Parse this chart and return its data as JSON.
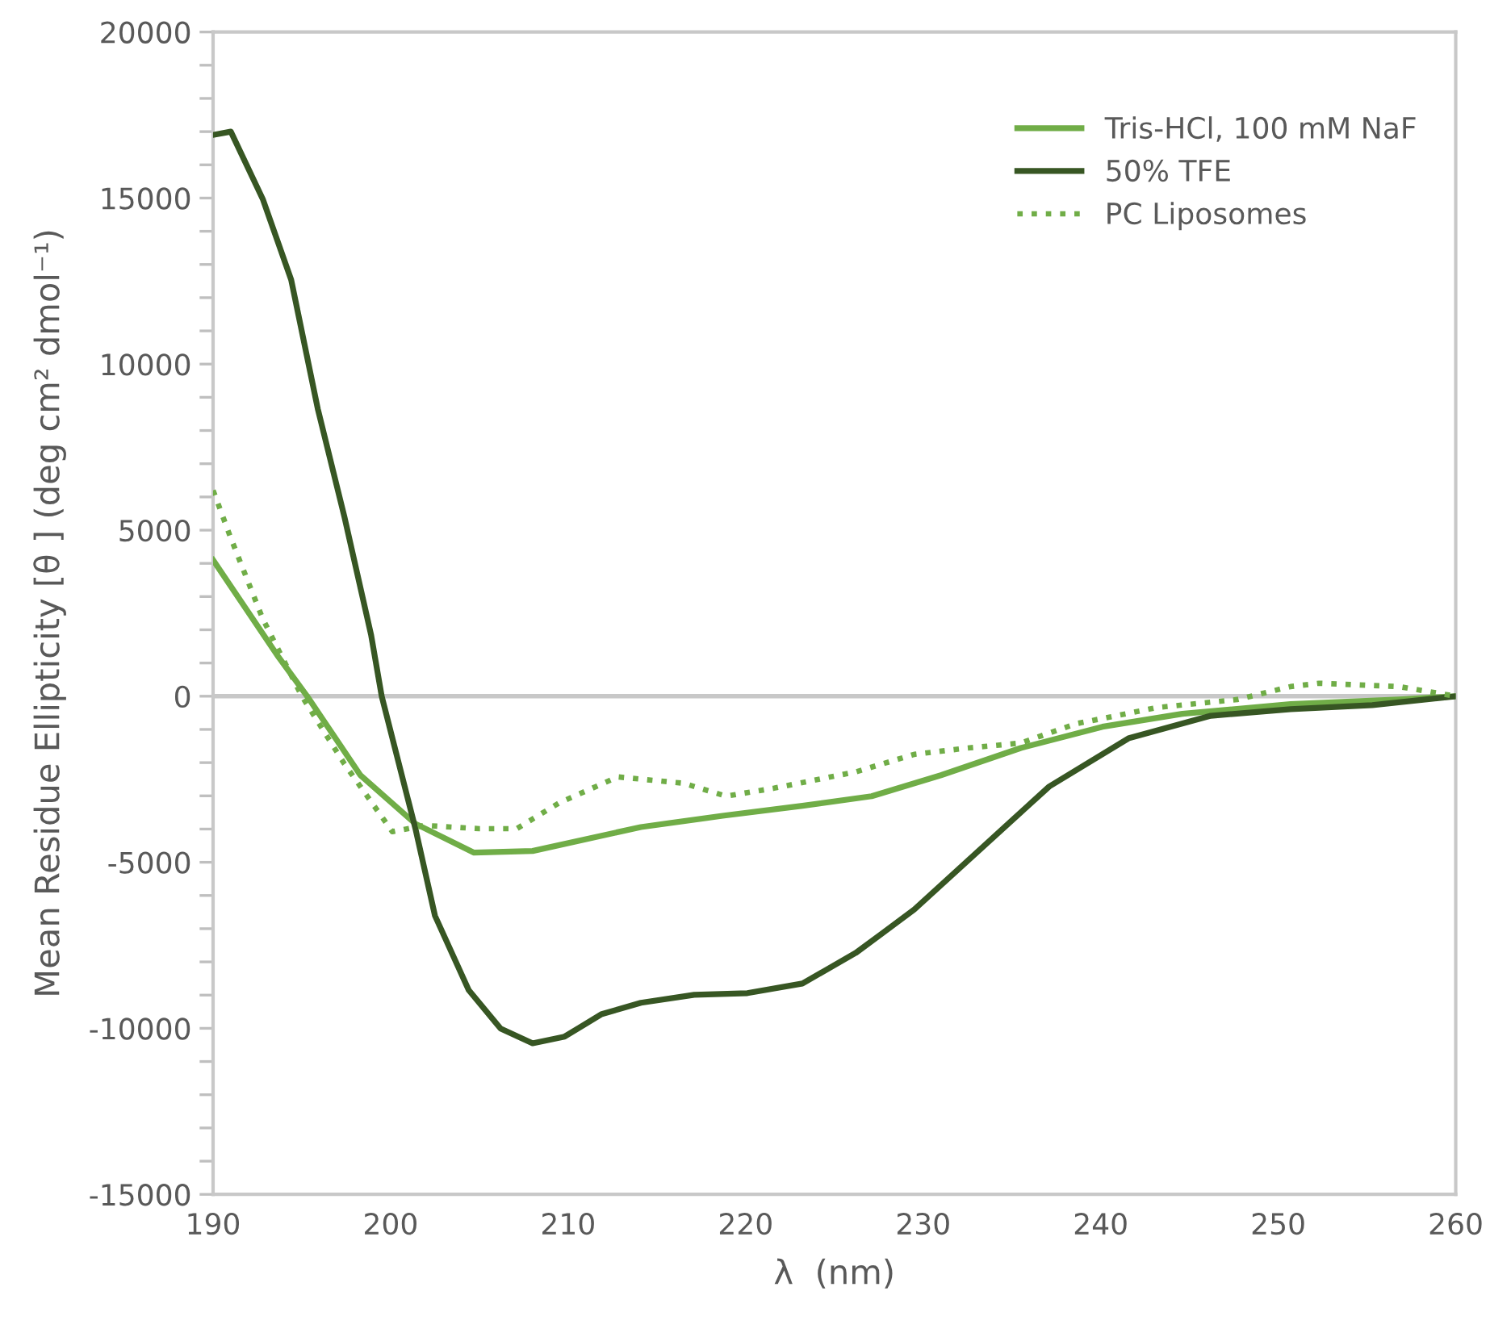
{
  "chart_data": {
    "type": "line",
    "xlabel": "λ  (nm)",
    "ylabel": "Mean Residue Ellipticity [θ ] (deg cm² dmol⁻¹)",
    "xlim": [
      190,
      260
    ],
    "xticks": [
      190,
      200,
      210,
      220,
      230,
      240,
      250,
      260
    ],
    "ylim": [
      -15000,
      20000
    ],
    "yticks": [
      -15000,
      {
        "value": -14000,
        "label": null
      },
      {
        "value": -13000,
        "label": null
      },
      {
        "value": -12000,
        "label": null
      },
      {
        "value": -11000,
        "label": null
      },
      -10000,
      {
        "value": -9000,
        "label": null
      },
      {
        "value": -8000,
        "label": null
      },
      {
        "value": -7000,
        "label": null
      },
      {
        "value": -6000,
        "label": null
      },
      -5000,
      {
        "value": -4000,
        "label": null
      },
      {
        "value": -3000,
        "label": null
      },
      {
        "value": -2000,
        "label": null
      },
      {
        "value": -1000,
        "label": null
      },
      0,
      {
        "value": 1000,
        "label": null
      },
      {
        "value": 2000,
        "label": null
      },
      {
        "value": 3000,
        "label": null
      },
      {
        "value": 4000,
        "label": null
      },
      5000,
      {
        "value": 6000,
        "label": null
      },
      {
        "value": 7000,
        "label": null
      },
      {
        "value": 8000,
        "label": null
      },
      {
        "value": 9000,
        "label": null
      },
      10000,
      {
        "value": 11000,
        "label": null
      },
      {
        "value": 12000,
        "label": null
      },
      {
        "value": 13000,
        "label": null
      },
      {
        "value": 14000,
        "label": null
      },
      15000,
      {
        "value": 16000,
        "label": null
      },
      {
        "value": 17000,
        "label": null
      },
      {
        "value": 18000,
        "label": null
      },
      {
        "value": 19000,
        "label": null
      },
      20000
    ],
    "grid": false,
    "legend": "top right",
    "marker": "none",
    "ref_lines": [
      {
        "axis": "y",
        "value": 0,
        "color": "#c8c8c8"
      }
    ],
    "series": [
      {
        "name": "Tris-HCl, 100 mM NaF",
        "color": "#70ad47",
        "line_style": "solid",
        "x": [
          190,
          193.7,
          195.3,
          198.3,
          201.4,
          204.7,
          208,
          214.1,
          218.7,
          223.2,
          227.1,
          231,
          235.5,
          240.1,
          244.6,
          250.7,
          256.8,
          260
        ],
        "values": [
          4100,
          1170,
          0,
          -2380,
          -3840,
          -4710,
          -4660,
          -3940,
          -3600,
          -3300,
          -3010,
          -2380,
          -1560,
          -920,
          -530,
          -240,
          -100,
          0
        ]
      },
      {
        "name": "50% TFE",
        "color": "#375623",
        "line_style": "solid",
        "x": [
          190,
          191,
          192.8,
          194.4,
          195.9,
          197.4,
          198.9,
          199.5,
          201.4,
          202.5,
          204.4,
          206.2,
          208,
          209.8,
          211.9,
          214.1,
          217.1,
          220.1,
          223.2,
          226.2,
          227.7,
          229.5,
          233.5,
          237.1,
          241.6,
          246.2,
          250.7,
          255.3,
          260
        ],
        "values": [
          16900,
          17000,
          14970,
          12540,
          8650,
          5400,
          1850,
          0,
          -3990,
          -6610,
          -8850,
          -10010,
          -10450,
          -10250,
          -9570,
          -9230,
          -8990,
          -8940,
          -8650,
          -7730,
          -7140,
          -6420,
          -4470,
          -2720,
          -1260,
          -590,
          -390,
          -270,
          0
        ]
      },
      {
        "name": "PC Liposomes",
        "color": "#70ad47",
        "line_style": "dotted",
        "x": [
          190,
          191,
          192.8,
          195,
          197.4,
          200.1,
          201.9,
          205,
          207.1,
          209.5,
          212.8,
          216.5,
          218.9,
          221.6,
          226.2,
          229.5,
          232.5,
          235.5,
          238.6,
          243.2,
          247.7,
          250.7,
          252.3,
          256.8,
          260
        ],
        "values": [
          6200,
          4760,
          2330,
          0,
          -2040,
          -4080,
          -3890,
          -3990,
          -3990,
          -3210,
          -2430,
          -2620,
          -3010,
          -2770,
          -2280,
          -1750,
          -1560,
          -1410,
          -830,
          -340,
          -100,
          290,
          390,
          290,
          0
        ]
      }
    ]
  }
}
